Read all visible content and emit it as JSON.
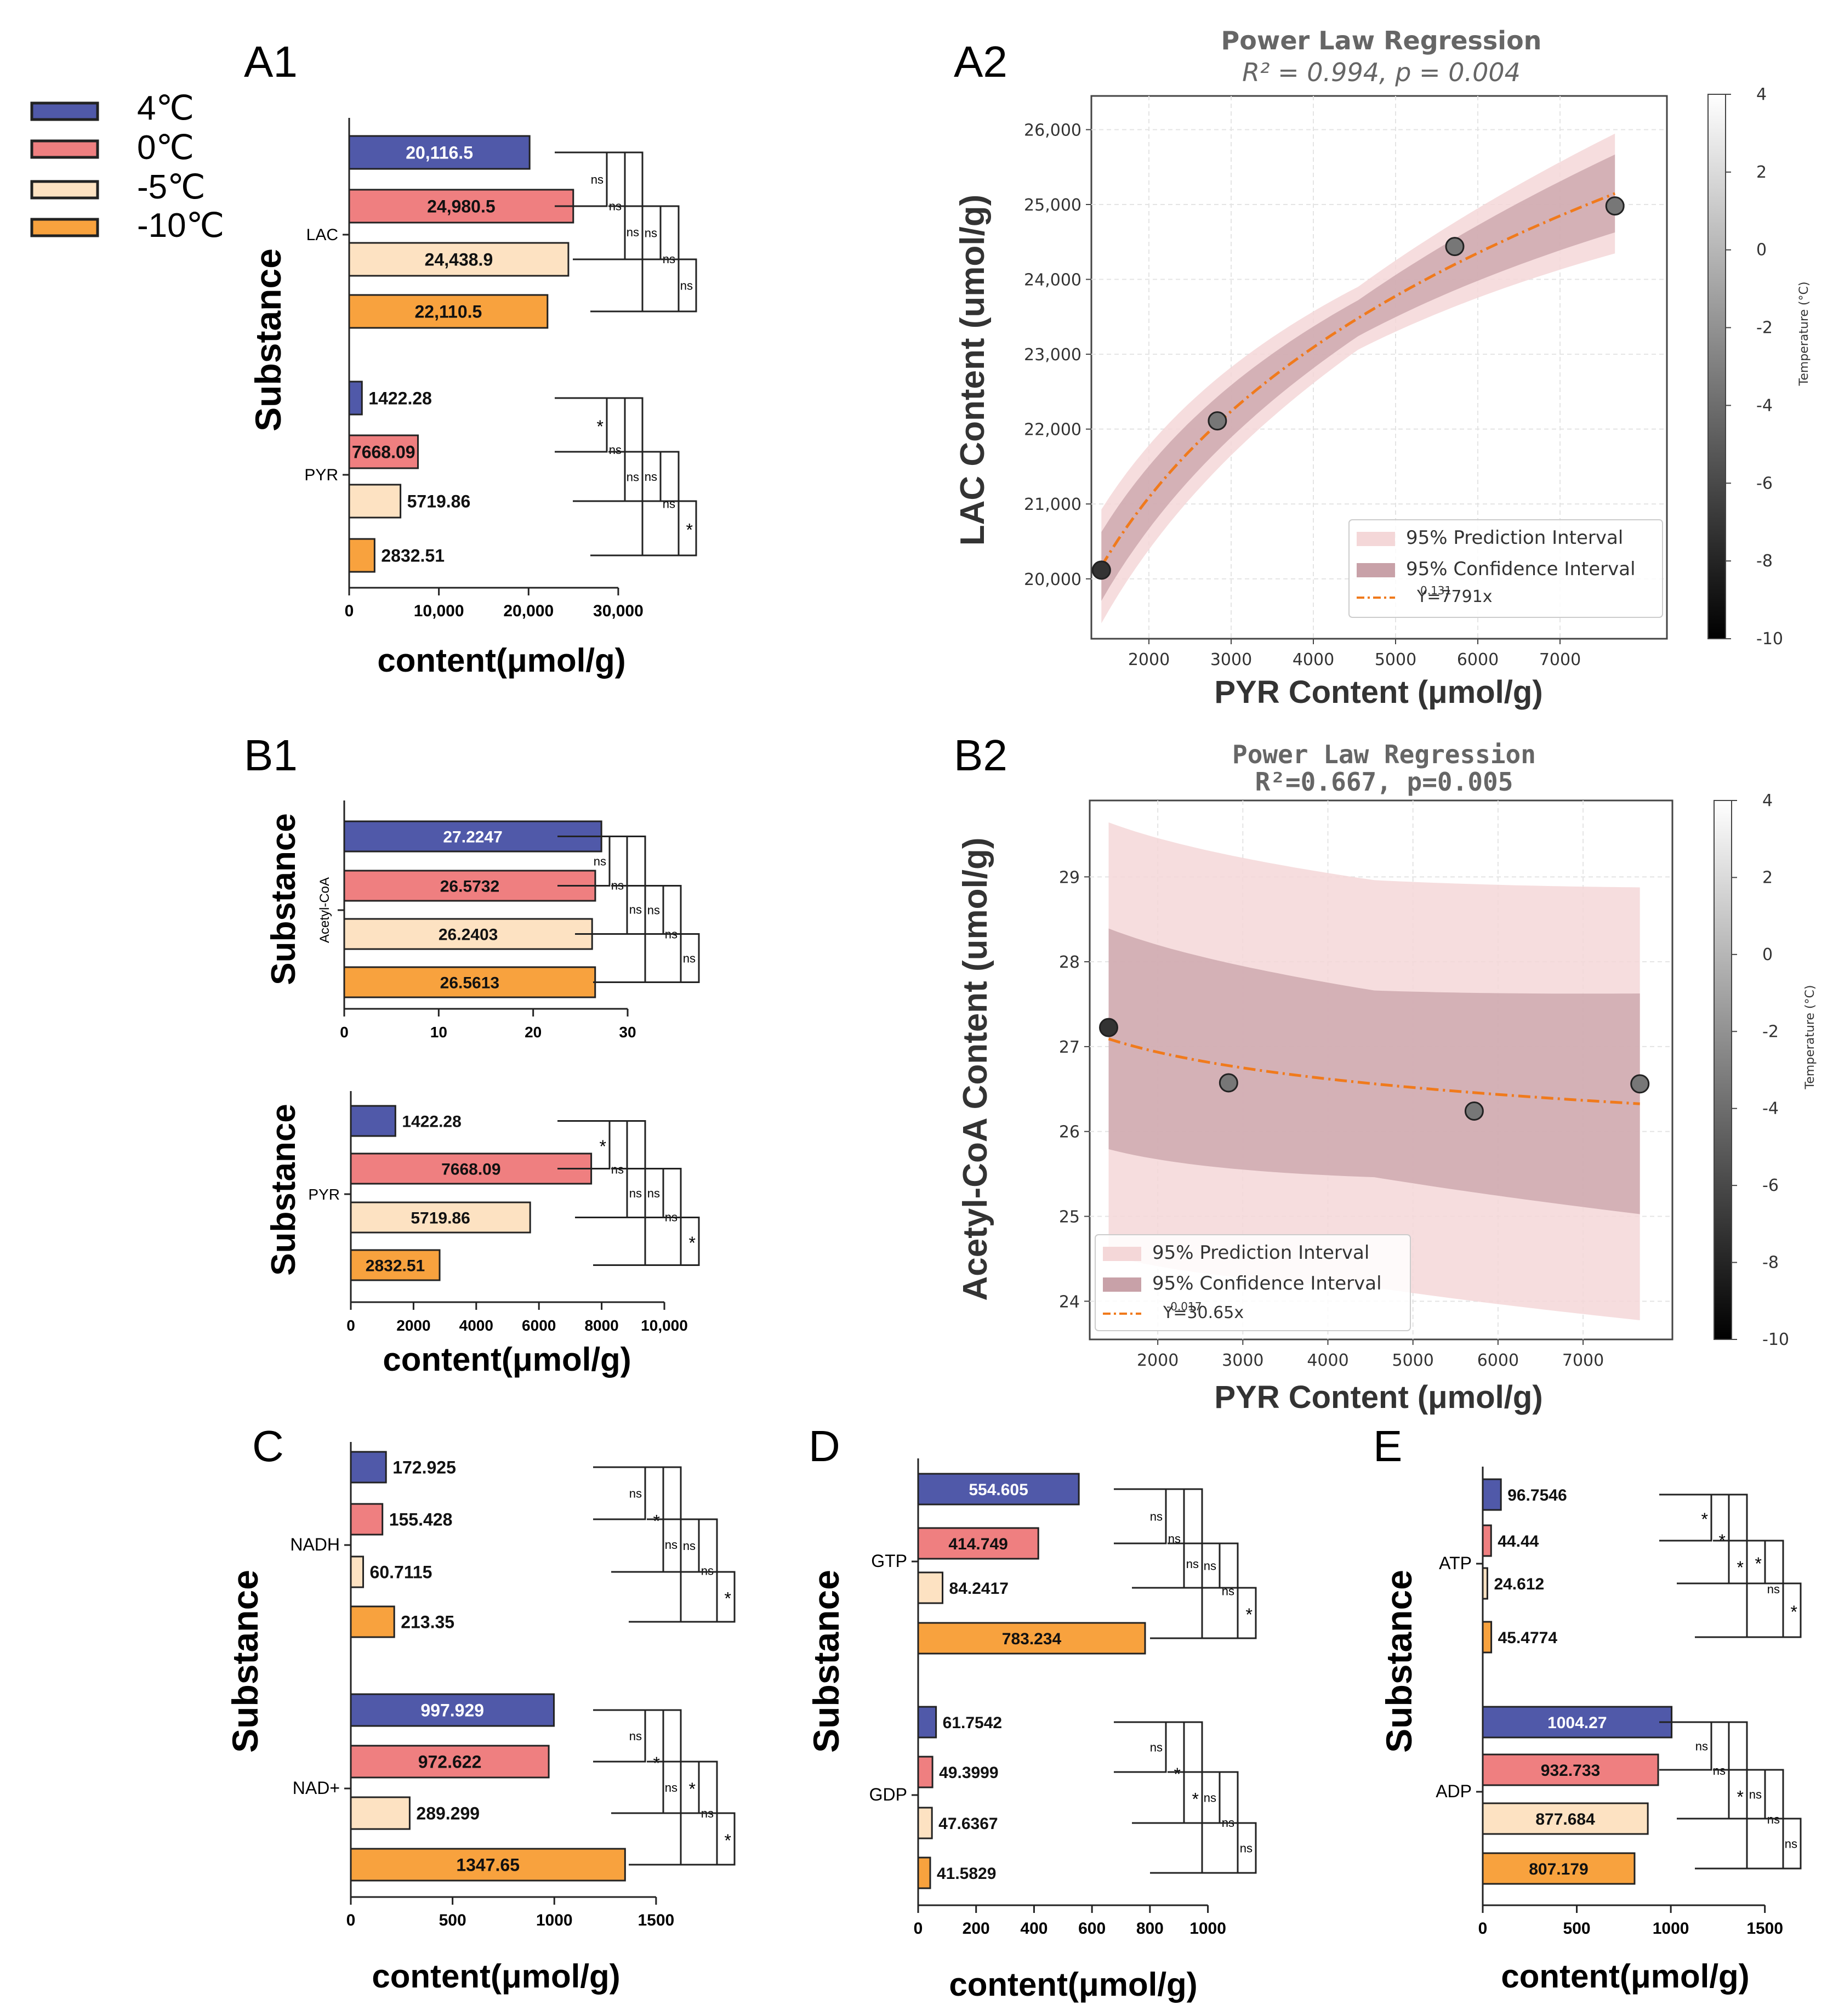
{
  "legend": [
    {
      "label": "4℃",
      "color": "#5059a9"
    },
    {
      "label": "0℃",
      "color": "#ef7f80"
    },
    {
      "label": "-5℃",
      "color": "#fde2c2"
    },
    {
      "label": "-10℃",
      "color": "#f8a23e"
    }
  ],
  "colors": {
    "regline": "#f07a1c",
    "pi": "#f4d7d8",
    "ci": "#c8a1a8",
    "edge": "#222222"
  },
  "chart_data": [
    {
      "id": "A1",
      "panel_label": "A1",
      "type": "bar",
      "orientation": "horizontal",
      "ylabel": "Substance",
      "xlabel": "content(μmol/g)",
      "xlim": [
        0,
        33000
      ],
      "xticks": [
        0,
        10000,
        20000,
        30000
      ],
      "xtick_labels": [
        "0",
        "10,000",
        "20,000",
        "30,000"
      ],
      "groups": [
        {
          "name": "LAC",
          "values": [
            20116.5,
            24980.5,
            24438.9,
            22110.5
          ],
          "labels": [
            "20,116.5",
            "24,980.5",
            "24,438.9",
            "22,110.5"
          ],
          "label_inside": [
            true,
            true,
            true,
            true
          ],
          "sig": [
            {
              "a": 0,
              "b": 1,
              "mark": "ns"
            },
            {
              "a": 0,
              "b": 2,
              "mark": "ns"
            },
            {
              "a": 0,
              "b": 3,
              "mark": "ns"
            },
            {
              "a": 1,
              "b": 2,
              "mark": "ns"
            },
            {
              "a": 1,
              "b": 3,
              "mark": "ns"
            },
            {
              "a": 2,
              "b": 3,
              "mark": "ns"
            }
          ]
        },
        {
          "name": "PYR",
          "values": [
            1422.28,
            7668.09,
            5719.86,
            2832.51
          ],
          "labels": [
            "1422.28",
            "7668.09",
            "5719.86",
            "2832.51"
          ],
          "label_inside": [
            false,
            true,
            false,
            false
          ],
          "sig": [
            {
              "a": 0,
              "b": 1,
              "mark": "*"
            },
            {
              "a": 0,
              "b": 2,
              "mark": "ns"
            },
            {
              "a": 0,
              "b": 3,
              "mark": "ns"
            },
            {
              "a": 1,
              "b": 2,
              "mark": "ns"
            },
            {
              "a": 1,
              "b": 3,
              "mark": "ns"
            },
            {
              "a": 2,
              "b": 3,
              "mark": "*"
            }
          ]
        }
      ]
    },
    {
      "id": "A2",
      "panel_label": "A2",
      "type": "scatter",
      "title": "Power Law Regression",
      "subtitle": "R² = 0.994, p = 0.004",
      "xlabel": "PYR Content (μmol/g)",
      "ylabel": "LAC Content (umol/g)",
      "xlim": [
        1300,
        8300
      ],
      "ylim": [
        19200,
        26450
      ],
      "xticks": [
        2000,
        3000,
        4000,
        5000,
        6000,
        7000
      ],
      "yticks": [
        20000,
        21000,
        22000,
        23000,
        24000,
        25000,
        26000
      ],
      "ytick_labels": [
        "20,000",
        "21,000",
        "22,000",
        "23,000",
        "24,000",
        "25,000",
        "26,000"
      ],
      "points": [
        {
          "x": 1422.28,
          "y": 20116.5,
          "temp": -10
        },
        {
          "x": 2832.51,
          "y": 22110.5,
          "temp": -5
        },
        {
          "x": 5719.86,
          "y": 24438.9,
          "temp": -5
        },
        {
          "x": 7668.09,
          "y": 24980.5,
          "temp": -5
        }
      ],
      "fit": {
        "a": 7791,
        "b": 0.131,
        "x_from": 1422,
        "x_to": 7668
      },
      "ci_halfwidth": [
        460,
        240,
        520
      ],
      "pi_halfwidth": [
        760,
        420,
        800
      ],
      "legend_items": [
        "95% Prediction Interval",
        "95% Confidence Interval",
        "Y=7791x"
      ],
      "fit_exponent": "0.131",
      "colorbar": {
        "label": "Temperature (°C)",
        "min": -10,
        "max": 4,
        "ticks": [
          4,
          2,
          0,
          -2,
          -4,
          -6,
          -8,
          -10
        ]
      }
    },
    {
      "id": "B1a",
      "panel_label": "B1",
      "type": "bar",
      "orientation": "horizontal",
      "ylabel": "Substance",
      "xlabel": "",
      "xlim": [
        0,
        30
      ],
      "xticks": [
        0,
        10,
        20,
        30
      ],
      "xtick_labels": [
        "0",
        "10",
        "20",
        "30"
      ],
      "groups": [
        {
          "name": "Acetyl-CoA",
          "values": [
            27.2247,
            26.5732,
            26.2403,
            26.5613
          ],
          "labels": [
            "27.2247",
            "26.5732",
            "26.2403",
            "26.5613"
          ],
          "label_inside": [
            true,
            true,
            true,
            true
          ],
          "sig": [
            {
              "a": 0,
              "b": 1,
              "mark": "ns"
            },
            {
              "a": 0,
              "b": 2,
              "mark": "ns"
            },
            {
              "a": 0,
              "b": 3,
              "mark": "ns"
            },
            {
              "a": 1,
              "b": 2,
              "mark": "ns"
            },
            {
              "a": 1,
              "b": 3,
              "mark": "ns"
            },
            {
              "a": 2,
              "b": 3,
              "mark": "ns"
            }
          ]
        }
      ]
    },
    {
      "id": "B1b",
      "panel_label": "",
      "type": "bar",
      "orientation": "horizontal",
      "ylabel": "Substance",
      "xlabel": "content(μmol/g)",
      "xlim": [
        0,
        10000
      ],
      "xticks": [
        0,
        2000,
        4000,
        6000,
        8000,
        10000
      ],
      "xtick_labels": [
        "0",
        "2000",
        "4000",
        "6000",
        "8000",
        "10,000"
      ],
      "groups": [
        {
          "name": "PYR",
          "values": [
            1422.28,
            7668.09,
            5719.86,
            2832.51
          ],
          "labels": [
            "1422.28",
            "7668.09",
            "5719.86",
            "2832.51"
          ],
          "label_inside": [
            false,
            true,
            true,
            true
          ],
          "sig": [
            {
              "a": 0,
              "b": 1,
              "mark": "*"
            },
            {
              "a": 0,
              "b": 2,
              "mark": "ns"
            },
            {
              "a": 0,
              "b": 3,
              "mark": "ns"
            },
            {
              "a": 1,
              "b": 2,
              "mark": "ns"
            },
            {
              "a": 1,
              "b": 3,
              "mark": "ns"
            },
            {
              "a": 2,
              "b": 3,
              "mark": "*"
            }
          ]
        }
      ]
    },
    {
      "id": "B2",
      "panel_label": "B2",
      "type": "scatter",
      "title": "Power Law Regression",
      "subtitle": "R²=0.667, p=0.005",
      "xlabel": "PYR Content (μmol/g)",
      "ylabel": "Acetyl-CoA Content (umol/g)",
      "xlim": [
        1200,
        8050
      ],
      "ylim": [
        23.55,
        29.9
      ],
      "xticks": [
        2000,
        3000,
        4000,
        5000,
        6000,
        7000
      ],
      "yticks": [
        24,
        25,
        26,
        27,
        28,
        29
      ],
      "ytick_labels": [
        "24",
        "25",
        "26",
        "27",
        "28",
        "29"
      ],
      "points": [
        {
          "x": 1422.28,
          "y": 27.2247,
          "temp": -10
        },
        {
          "x": 2832.51,
          "y": 26.5732,
          "temp": -5
        },
        {
          "x": 5719.86,
          "y": 26.2403,
          "temp": -5
        },
        {
          "x": 7668.09,
          "y": 26.5613,
          "temp": -5
        }
      ],
      "fit": {
        "a": 30.65,
        "b": -0.017,
        "x_from": 1422,
        "x_to": 7668
      },
      "ci_halfwidth": [
        1.3,
        1.1,
        1.3
      ],
      "pi_halfwidth": [
        2.55,
        2.4,
        2.55
      ],
      "legend_items": [
        "95% Prediction Interval",
        "95% Confidence Interval",
        "Y=30.65x"
      ],
      "fit_exponent": "-0.017",
      "colorbar": {
        "label": "Temperature (°C)",
        "min": -10,
        "max": 4,
        "ticks": [
          4,
          2,
          0,
          -2,
          -4,
          -6,
          -8,
          -10
        ]
      }
    },
    {
      "id": "C",
      "panel_label": "C",
      "type": "bar",
      "orientation": "horizontal",
      "ylabel": "Substance",
      "xlabel": "content(μmol/g)",
      "xlim": [
        0,
        1600
      ],
      "xticks": [
        0,
        500,
        1000,
        1500
      ],
      "xtick_labels": [
        "0",
        "500",
        "1000",
        "1500"
      ],
      "groups": [
        {
          "name": "NADH",
          "values": [
            172.925,
            155.428,
            60.7115,
            213.35
          ],
          "labels": [
            "172.925",
            "155.428",
            "60.7115",
            "213.35"
          ],
          "label_inside": [
            false,
            false,
            false,
            false
          ],
          "sig": [
            {
              "a": 0,
              "b": 1,
              "mark": "ns"
            },
            {
              "a": 0,
              "b": 2,
              "mark": "*"
            },
            {
              "a": 0,
              "b": 3,
              "mark": "ns"
            },
            {
              "a": 1,
              "b": 2,
              "mark": "ns"
            },
            {
              "a": 1,
              "b": 3,
              "mark": "ns"
            },
            {
              "a": 2,
              "b": 3,
              "mark": "*"
            }
          ]
        },
        {
          "name": "NAD+",
          "values": [
            997.929,
            972.622,
            289.299,
            1347.65
          ],
          "labels": [
            "997.929",
            "972.622",
            "289.299",
            "1347.65"
          ],
          "label_inside": [
            true,
            true,
            false,
            true
          ],
          "sig": [
            {
              "a": 0,
              "b": 1,
              "mark": "ns"
            },
            {
              "a": 0,
              "b": 2,
              "mark": "*"
            },
            {
              "a": 0,
              "b": 3,
              "mark": "ns"
            },
            {
              "a": 1,
              "b": 2,
              "mark": "*"
            },
            {
              "a": 1,
              "b": 3,
              "mark": "ns"
            },
            {
              "a": 2,
              "b": 3,
              "mark": "*"
            }
          ]
        }
      ]
    },
    {
      "id": "D",
      "panel_label": "D",
      "type": "bar",
      "orientation": "horizontal",
      "ylabel": "Substance",
      "xlabel": "content(μmol/g)",
      "xlim": [
        0,
        1050
      ],
      "xticks": [
        0,
        200,
        400,
        600,
        800,
        1000
      ],
      "xtick_labels": [
        "0",
        "200",
        "400",
        "600",
        "800",
        "1000"
      ],
      "groups": [
        {
          "name": "GTP",
          "values": [
            554.605,
            414.749,
            84.2417,
            783.234
          ],
          "labels": [
            "554.605",
            "414.749",
            "84.2417",
            "783.234"
          ],
          "label_inside": [
            true,
            true,
            false,
            true
          ],
          "sig": [
            {
              "a": 0,
              "b": 1,
              "mark": "ns"
            },
            {
              "a": 0,
              "b": 2,
              "mark": "ns"
            },
            {
              "a": 0,
              "b": 3,
              "mark": "ns"
            },
            {
              "a": 1,
              "b": 2,
              "mark": "ns"
            },
            {
              "a": 1,
              "b": 3,
              "mark": "ns"
            },
            {
              "a": 2,
              "b": 3,
              "mark": "*"
            }
          ]
        },
        {
          "name": "GDP",
          "values": [
            61.7542,
            49.3999,
            47.6367,
            41.5829
          ],
          "labels": [
            "61.7542",
            "49.3999",
            "47.6367",
            "41.5829"
          ],
          "label_inside": [
            false,
            false,
            false,
            false
          ],
          "sig": [
            {
              "a": 0,
              "b": 1,
              "mark": "ns"
            },
            {
              "a": 0,
              "b": 2,
              "mark": "*"
            },
            {
              "a": 0,
              "b": 3,
              "mark": "*"
            },
            {
              "a": 1,
              "b": 2,
              "mark": "ns"
            },
            {
              "a": 1,
              "b": 3,
              "mark": "ns"
            },
            {
              "a": 2,
              "b": 3,
              "mark": "ns"
            }
          ]
        }
      ]
    },
    {
      "id": "E",
      "panel_label": "E",
      "type": "bar",
      "orientation": "horizontal",
      "ylabel": "Substance",
      "xlabel": "content(μmol/g)",
      "xlim": [
        0,
        1600
      ],
      "xticks": [
        0,
        500,
        1000,
        1500
      ],
      "xtick_labels": [
        "0",
        "500",
        "1000",
        "1500"
      ],
      "groups": [
        {
          "name": "ATP",
          "values": [
            96.7546,
            44.44,
            24.612,
            45.4774
          ],
          "labels": [
            "96.7546",
            "44.44",
            "24.612",
            "45.4774"
          ],
          "label_inside": [
            false,
            false,
            false,
            false
          ],
          "sig": [
            {
              "a": 0,
              "b": 1,
              "mark": "*"
            },
            {
              "a": 0,
              "b": 2,
              "mark": "*"
            },
            {
              "a": 0,
              "b": 3,
              "mark": "*"
            },
            {
              "a": 1,
              "b": 2,
              "mark": "*"
            },
            {
              "a": 1,
              "b": 3,
              "mark": "ns"
            },
            {
              "a": 2,
              "b": 3,
              "mark": "*"
            }
          ]
        },
        {
          "name": "ADP",
          "values": [
            1004.27,
            932.733,
            877.684,
            807.179
          ],
          "labels": [
            "1004.27",
            "932.733",
            "877.684",
            "807.179"
          ],
          "label_inside": [
            true,
            true,
            true,
            true
          ],
          "sig": [
            {
              "a": 0,
              "b": 1,
              "mark": "ns"
            },
            {
              "a": 0,
              "b": 2,
              "mark": "ns"
            },
            {
              "a": 0,
              "b": 3,
              "mark": "*"
            },
            {
              "a": 1,
              "b": 2,
              "mark": "ns"
            },
            {
              "a": 1,
              "b": 3,
              "mark": "ns"
            },
            {
              "a": 2,
              "b": 3,
              "mark": "ns"
            }
          ]
        }
      ]
    }
  ]
}
